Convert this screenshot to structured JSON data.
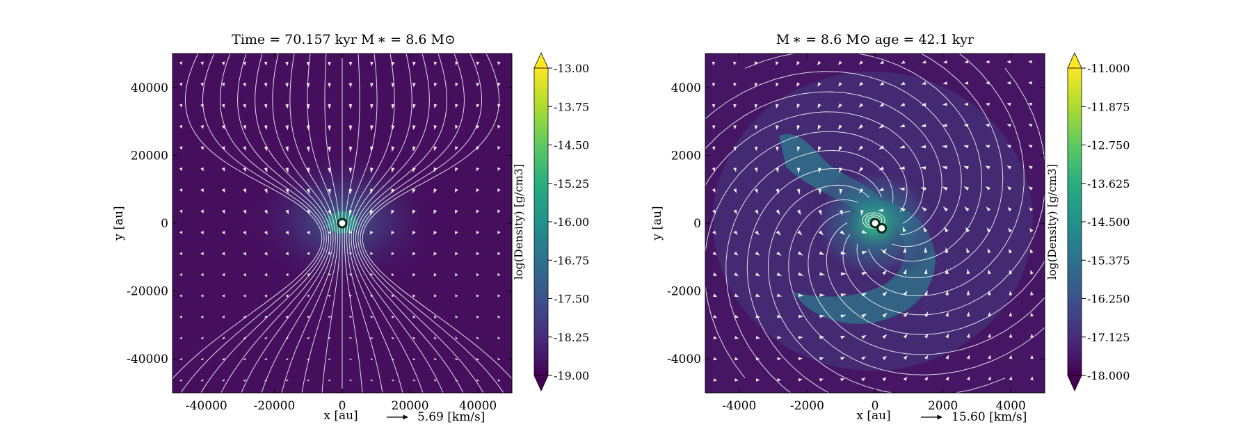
{
  "chart_data": [
    {
      "type": "heatmap",
      "title": "Time = 70.157 kyr    M ∗ = 8.6 M⊙",
      "xlabel": "x [au]",
      "ylabel": "y [au]",
      "xlim": [
        -50000,
        50000
      ],
      "ylim": [
        -50000,
        50000
      ],
      "xticks": [
        -40000,
        -20000,
        0,
        20000,
        40000
      ],
      "yticks": [
        -40000,
        -20000,
        0,
        20000,
        40000
      ],
      "xtick_labels": [
        "-40000",
        "-20000",
        "0",
        "20000",
        "40000"
      ],
      "ytick_labels": [
        "-40000",
        "-20000",
        "0",
        "20000",
        "40000"
      ],
      "velocity_key": "5.69 [km/s]",
      "colorbar": {
        "label": "log(Density) [g/cm3]",
        "range": [
          -19.0,
          -13.0
        ],
        "ticks": [
          "-13.00",
          "-13.75",
          "-14.50",
          "-15.25",
          "-16.00",
          "-16.75",
          "-17.50",
          "-18.25",
          "-19.00"
        ],
        "extend": "both",
        "colormap": "viridis"
      },
      "sinks": [
        [
          0,
          0
        ]
      ],
      "structure": "collapsing"
    },
    {
      "type": "heatmap",
      "title": "M ∗ = 8.6 M⊙          age = 42.1 kyr",
      "xlabel": "x [au]",
      "ylabel": "y [au]",
      "xlim": [
        -5000,
        5000
      ],
      "ylim": [
        -5000,
        5000
      ],
      "xticks": [
        -4000,
        -2000,
        0,
        2000,
        4000
      ],
      "yticks": [
        -4000,
        -2000,
        0,
        2000,
        4000
      ],
      "xtick_labels": [
        "-4000",
        "-2000",
        "0",
        "2000",
        "4000"
      ],
      "ytick_labels": [
        "-4000",
        "-2000",
        "0",
        "2000",
        "4000"
      ],
      "velocity_key": "15.60 [km/s]",
      "colorbar": {
        "label": "log(Density) [g/cm3]",
        "range": [
          -18.0,
          -11.0
        ],
        "ticks": [
          "-11.000",
          "-11.875",
          "-12.750",
          "-13.625",
          "-14.500",
          "-15.375",
          "-16.250",
          "-17.125",
          "-18.000"
        ],
        "extend": "both",
        "colormap": "viridis"
      },
      "sinks": [
        [
          0,
          0
        ],
        [
          200,
          -150
        ]
      ],
      "structure": "spiral"
    }
  ]
}
